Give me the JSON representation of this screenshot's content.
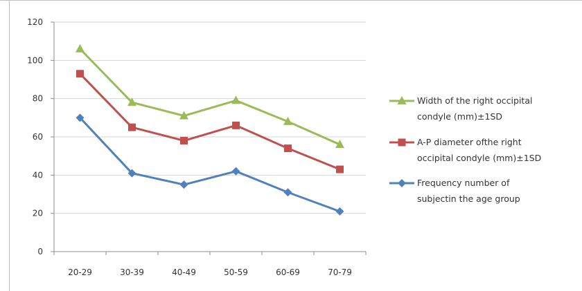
{
  "chart_data": {
    "type": "line",
    "categories": [
      "20-29",
      "30-39",
      "40-49",
      "50-59",
      "60-69",
      "70-79"
    ],
    "ylim": [
      0,
      120
    ],
    "y_ticks": [
      0,
      20,
      40,
      60,
      80,
      100,
      120
    ],
    "grid": true,
    "legend_position": "right",
    "series": [
      {
        "name": "Width of the right occipital condyle (mm)±1SD",
        "legend_lines": [
          "Width of the right occipital",
          "condyle (mm)±1SD"
        ],
        "values": [
          106,
          78,
          71,
          79,
          68,
          56
        ],
        "color": "#9bbb59",
        "marker": "triangle"
      },
      {
        "name": "A-P diameter ofthe right occipital condyle (mm)±1SD",
        "legend_lines": [
          "A-P diameter ofthe right",
          "occipital condyle (mm)±1SD"
        ],
        "values": [
          93,
          65,
          58,
          66,
          54,
          43
        ],
        "color": "#c0504d",
        "marker": "square"
      },
      {
        "name": "Frequency number of subjectin the age group",
        "legend_lines": [
          "Frequency number of",
          "subjectin the age group"
        ],
        "values": [
          70,
          41,
          35,
          42,
          31,
          21
        ],
        "color": "#4f81bd",
        "marker": "diamond"
      }
    ]
  }
}
